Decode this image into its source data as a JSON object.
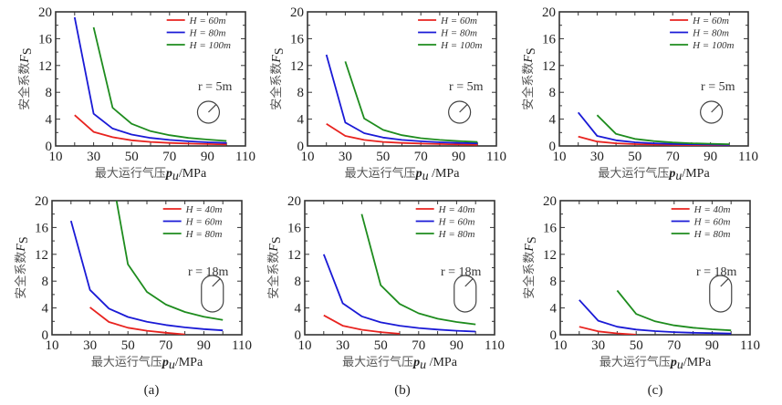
{
  "figure": {
    "panel_labels": [
      "(a)",
      "(b)",
      "(c)"
    ]
  },
  "colors": {
    "series": [
      "#e8231f",
      "#1a1ad6",
      "#1e8c1e"
    ],
    "axis": "#333333",
    "shape": "#444444"
  },
  "chart_data": [
    {
      "id": "a-top",
      "type": "line",
      "column": "(a)",
      "row": "top",
      "xlabel": "最大运行气压p_u/MPa",
      "xlabel_cn": "最大运行气压",
      "xlabel_var": "p",
      "xlabel_sub": "u",
      "xlabel_unit": "/MPa",
      "ylabel_cn": "安全系数",
      "ylabel_var": "F",
      "ylabel_sub": "S",
      "xlim": [
        10,
        110
      ],
      "ylim": [
        0,
        20
      ],
      "xticks": [
        10,
        30,
        50,
        70,
        90,
        110
      ],
      "yticks": [
        0,
        4,
        8,
        12,
        16,
        20
      ],
      "legend_position": "top-right",
      "annotation": "r = 5m",
      "cavern_shape": "circle",
      "series": [
        {
          "name": "H = 60m",
          "x": [
            20,
            30,
            40,
            50,
            60,
            70,
            80,
            90,
            100
          ],
          "y": [
            4.6,
            2.1,
            1.3,
            0.85,
            0.6,
            0.45,
            0.35,
            0.28,
            0.22
          ]
        },
        {
          "name": "H = 80m",
          "x": [
            20,
            30,
            40,
            50,
            60,
            70,
            80,
            90,
            100
          ],
          "y": [
            19.2,
            4.8,
            2.6,
            1.7,
            1.2,
            0.9,
            0.7,
            0.55,
            0.45
          ]
        },
        {
          "name": "H = 100m",
          "x": [
            30,
            40,
            50,
            60,
            70,
            80,
            90,
            100
          ],
          "y": [
            17.7,
            5.7,
            3.3,
            2.2,
            1.6,
            1.2,
            0.95,
            0.75
          ]
        }
      ]
    },
    {
      "id": "b-top",
      "type": "line",
      "column": "(b)",
      "row": "top",
      "xlabel": "最大运行气压p_u /MPa",
      "xlabel_cn": "最大运行气压",
      "xlabel_var": "p",
      "xlabel_sub": "u",
      "xlabel_unit": " /MPa",
      "ylabel_cn": "安全系数",
      "ylabel_var": "F",
      "ylabel_sub": "S",
      "xlim": [
        10,
        110
      ],
      "ylim": [
        0,
        20
      ],
      "xticks": [
        10,
        30,
        50,
        70,
        90,
        110
      ],
      "yticks": [
        0,
        4,
        8,
        12,
        16,
        20
      ],
      "legend_position": "top-right",
      "annotation": "r = 5m",
      "cavern_shape": "circle",
      "series": [
        {
          "name": "H = 60m",
          "x": [
            20,
            30,
            40,
            50,
            60,
            70,
            80,
            90,
            100
          ],
          "y": [
            3.3,
            1.5,
            0.9,
            0.6,
            0.45,
            0.35,
            0.28,
            0.22,
            0.18
          ]
        },
        {
          "name": "H = 80m",
          "x": [
            20,
            30,
            40,
            50,
            60,
            70,
            80,
            90,
            100
          ],
          "y": [
            13.6,
            3.5,
            1.9,
            1.25,
            0.9,
            0.7,
            0.55,
            0.45,
            0.38
          ]
        },
        {
          "name": "H = 100m",
          "x": [
            30,
            40,
            50,
            60,
            70,
            80,
            90,
            100
          ],
          "y": [
            12.6,
            4.1,
            2.4,
            1.6,
            1.15,
            0.9,
            0.72,
            0.6
          ]
        }
      ]
    },
    {
      "id": "c-top",
      "type": "line",
      "column": "(c)",
      "row": "top",
      "xlabel": "最大运行气压p_u/MPa",
      "xlabel_cn": "最大运行气压",
      "xlabel_var": "p",
      "xlabel_sub": "u",
      "xlabel_unit": "/MPa",
      "ylabel_cn": "安全系数",
      "ylabel_var": "F",
      "ylabel_sub": "S",
      "xlim": [
        10,
        110
      ],
      "ylim": [
        0,
        20
      ],
      "xticks": [
        10,
        30,
        50,
        70,
        90,
        110
      ],
      "yticks": [
        0,
        4,
        8,
        12,
        16,
        20
      ],
      "legend_position": "top-right",
      "annotation": "r = 5m",
      "cavern_shape": "circle",
      "series": [
        {
          "name": "H = 60m",
          "x": [
            20,
            30,
            40,
            50,
            60,
            70,
            80,
            90,
            100
          ],
          "y": [
            1.4,
            0.65,
            0.4,
            0.27,
            0.2,
            0.15,
            0.12,
            0.1,
            0.08
          ]
        },
        {
          "name": "H = 80m",
          "x": [
            20,
            30,
            40,
            50,
            60,
            70,
            80,
            90,
            100
          ],
          "y": [
            5.0,
            1.5,
            0.85,
            0.55,
            0.4,
            0.3,
            0.24,
            0.2,
            0.16
          ]
        },
        {
          "name": "H = 100m",
          "x": [
            30,
            40,
            50,
            60,
            70,
            80,
            90,
            100
          ],
          "y": [
            4.6,
            1.8,
            1.05,
            0.72,
            0.52,
            0.4,
            0.32,
            0.26
          ]
        }
      ]
    },
    {
      "id": "a-bottom",
      "type": "line",
      "column": "(a)",
      "row": "bottom",
      "xlabel": "最大运行气压p_u/MPa",
      "xlabel_cn": "最大运行气压",
      "xlabel_var": "p",
      "xlabel_sub": "u",
      "xlabel_unit": "/MPa",
      "ylabel_cn": "安全系数",
      "ylabel_var": "F",
      "ylabel_sub": "S",
      "xlim": [
        10,
        110
      ],
      "ylim": [
        0,
        20
      ],
      "xticks": [
        10,
        30,
        50,
        70,
        90,
        110
      ],
      "yticks": [
        0,
        4,
        8,
        12,
        16,
        20
      ],
      "legend_position": "top-right",
      "annotation": "r = 18m",
      "cavern_shape": "capsule",
      "series": [
        {
          "name": "H = 40m",
          "x": [
            30,
            40,
            50,
            60,
            70,
            80
          ],
          "y": [
            4.1,
            1.9,
            1.05,
            0.6,
            0.3,
            0.05
          ]
        },
        {
          "name": "H = 60m",
          "x": [
            20,
            30,
            40,
            50,
            60,
            70,
            80,
            90,
            100
          ],
          "y": [
            17.0,
            6.7,
            3.9,
            2.65,
            1.95,
            1.45,
            1.1,
            0.85,
            0.65
          ]
        },
        {
          "name": "H = 80m",
          "x": [
            44,
            50,
            60,
            70,
            80,
            90,
            100
          ],
          "y": [
            20.0,
            10.5,
            6.4,
            4.5,
            3.4,
            2.7,
            2.2
          ]
        }
      ]
    },
    {
      "id": "b-bottom",
      "type": "line",
      "column": "(b)",
      "row": "bottom",
      "xlabel": "最大运行气压p_u /MPa",
      "xlabel_cn": "最大运行气压",
      "xlabel_var": "p",
      "xlabel_sub": "u",
      "xlabel_unit": " /MPa",
      "ylabel_cn": "安全系数",
      "ylabel_var": "F",
      "ylabel_sub": "S",
      "xlim": [
        10,
        110
      ],
      "ylim": [
        0,
        20
      ],
      "xticks": [
        10,
        30,
        50,
        70,
        90,
        110
      ],
      "yticks": [
        0,
        4,
        8,
        12,
        16,
        20
      ],
      "legend_position": "top-right",
      "annotation": "r = 18m",
      "cavern_shape": "capsule",
      "series": [
        {
          "name": "H = 40m",
          "x": [
            20,
            30,
            40,
            50,
            60
          ],
          "y": [
            2.9,
            1.35,
            0.75,
            0.4,
            0.15
          ]
        },
        {
          "name": "H = 60m",
          "x": [
            20,
            30,
            40,
            50,
            60,
            70,
            80,
            90,
            100
          ],
          "y": [
            12.0,
            4.7,
            2.75,
            1.85,
            1.35,
            1.0,
            0.78,
            0.6,
            0.48
          ]
        },
        {
          "name": "H = 80m",
          "x": [
            40,
            50,
            60,
            70,
            80,
            90,
            100
          ],
          "y": [
            18.0,
            7.4,
            4.6,
            3.2,
            2.4,
            1.9,
            1.55
          ]
        }
      ]
    },
    {
      "id": "c-bottom",
      "type": "line",
      "column": "(c)",
      "row": "bottom",
      "xlabel": "最大运行气压p_u/MPa",
      "xlabel_cn": "最大运行气压",
      "xlabel_var": "p",
      "xlabel_sub": "u",
      "xlabel_unit": "/MPa",
      "ylabel_cn": "安全系数",
      "ylabel_var": "F",
      "ylabel_sub": "S",
      "xlim": [
        10,
        110
      ],
      "ylim": [
        0,
        20
      ],
      "xticks": [
        10,
        30,
        50,
        70,
        90,
        110
      ],
      "yticks": [
        0,
        4,
        8,
        12,
        16,
        20
      ],
      "legend_position": "top-right",
      "annotation": "r = 18m",
      "cavern_shape": "capsule",
      "series": [
        {
          "name": "H = 40m",
          "x": [
            20,
            30,
            40,
            50
          ],
          "y": [
            1.2,
            0.5,
            0.2,
            0.02
          ]
        },
        {
          "name": "H = 60m",
          "x": [
            20,
            30,
            40,
            50,
            60,
            70,
            80,
            90,
            100
          ],
          "y": [
            5.2,
            2.1,
            1.2,
            0.78,
            0.55,
            0.4,
            0.3,
            0.24,
            0.18
          ]
        },
        {
          "name": "H = 80m",
          "x": [
            40,
            50,
            60,
            70,
            80,
            90,
            100
          ],
          "y": [
            6.6,
            3.1,
            2.0,
            1.4,
            1.05,
            0.82,
            0.65
          ]
        }
      ]
    }
  ]
}
